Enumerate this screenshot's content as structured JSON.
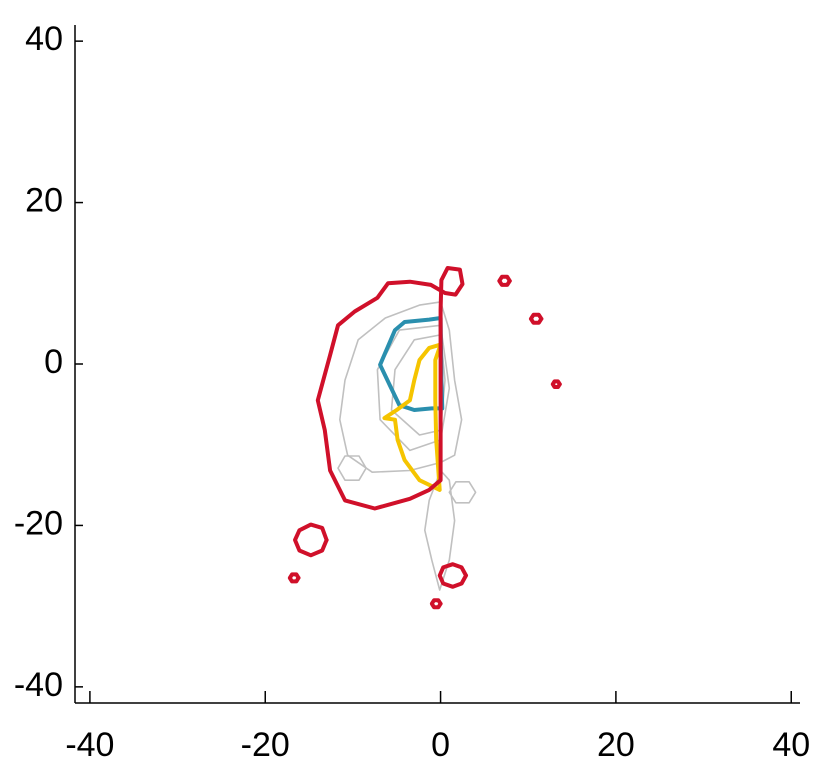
{
  "chart_data": {
    "type": "contour",
    "xlim": [
      -41.7,
      41
    ],
    "ylim": [
      -42,
      42
    ],
    "xticks": [
      -40,
      -20,
      0,
      20,
      40
    ],
    "yticks": [
      -40,
      -20,
      0,
      20,
      40
    ],
    "series": [
      {
        "color": "#c0c0c0",
        "x": [
          0,
          -2.4,
          -6.3,
          -9.4,
          -10.9,
          -11.5,
          -10.6,
          -7.8,
          -3.5,
          0,
          1.6,
          2.4,
          1.6,
          1.0,
          0
        ],
        "y": [
          7.7,
          7.3,
          5.7,
          3,
          -2,
          -6.9,
          -11.3,
          -13.4,
          -13.2,
          -12.2,
          -11.3,
          -6.9,
          -2,
          4.2,
          7.7
        ]
      },
      {
        "color": "#c0c0c0",
        "x": [
          0,
          -4.7,
          -7.2,
          -6.9,
          -3.5,
          0,
          1,
          0
        ],
        "y": [
          4.8,
          4.2,
          -0.7,
          -6.9,
          -10.7,
          -9.4,
          -3,
          4.8
        ]
      },
      {
        "color": "#c0c0c0",
        "x": [
          0,
          -3,
          -5.2,
          -5.6,
          -2.4,
          0,
          0.5,
          0
        ],
        "y": [
          3.6,
          3,
          -0.7,
          -5.7,
          -8.8,
          -8.2,
          -2,
          3.6
        ]
      },
      {
        "color": "#c0c0c0",
        "x": [
          0,
          -1.3,
          -1.8,
          -1,
          -0.1,
          1,
          1.6,
          1,
          0
        ],
        "y": [
          -13.2,
          -16.9,
          -20.6,
          -24.3,
          -28,
          -24.3,
          -19.4,
          -14.4,
          -13.2
        ]
      },
      {
        "color": "#c0c0c0",
        "x": [
          -8.5,
          -9.3,
          -10.9,
          -11.7,
          -10.9,
          -9.3,
          -8.5
        ],
        "y": [
          -12.9,
          -11.4,
          -11.4,
          -12.9,
          -14.4,
          -14.4,
          -12.9
        ]
      },
      {
        "color": "#c0c0c0",
        "x": [
          4,
          3.25,
          1.75,
          1,
          1.75,
          3.25,
          4
        ],
        "y": [
          -15.9,
          -14.6,
          -14.6,
          -15.9,
          -17.2,
          -17.2,
          -15.9
        ]
      },
      {
        "color": "#2a8fae",
        "x": [
          0,
          -1.3,
          -4.1,
          -5.2,
          -6.9,
          -5.8,
          -4.7,
          -3,
          -1,
          0.2,
          0.1,
          0
        ],
        "y": [
          5.7,
          5.5,
          5.2,
          4.2,
          -0.1,
          -2.6,
          -5.1,
          -5.7,
          -5.5,
          -5.5,
          -2.0,
          5.7
        ]
      },
      {
        "color": "#f5c400",
        "x": [
          0,
          -1.3,
          -2.4,
          -3,
          -3.5,
          -5,
          -6.4,
          -5.2,
          -4.9,
          -4.1,
          -2.4,
          -0.1,
          -0.5,
          -0.6,
          -0.6,
          0
        ],
        "y": [
          2.4,
          2,
          0.5,
          -2,
          -4.5,
          -5.7,
          -6.7,
          -6.9,
          -9.4,
          -11.9,
          -14.4,
          -15.6,
          -9.4,
          -4.5,
          0.5,
          2.4
        ]
      },
      {
        "color": "#d0102a",
        "x": [
          -1.1,
          -3.5,
          -6,
          -7.2,
          -9.8,
          -11.7,
          -12.6,
          -14,
          -13.2,
          -12.6,
          -10.9,
          -7.5,
          -3.5,
          -1.3,
          0,
          0,
          0,
          0.1,
          0.8,
          2.2,
          2.5,
          1.7,
          0.5,
          -1.1
        ],
        "y": [
          9.8,
          10.2,
          10,
          8.2,
          6.5,
          4.8,
          1.1,
          -4.5,
          -8.2,
          -13.2,
          -16.9,
          -17.9,
          -16.7,
          -15.6,
          -14.4,
          -4.5,
          6.7,
          10.4,
          11.9,
          11.7,
          9.9,
          8.6,
          8.8,
          9.8
        ]
      },
      {
        "color": "#d0102a",
        "x": [
          7.9,
          7.6,
          7.0,
          6.7,
          7.0,
          7.6,
          7.9
        ],
        "y": [
          10.3,
          10.8,
          10.8,
          10.3,
          9.8,
          9.8,
          10.3
        ]
      },
      {
        "color": "#d0102a",
        "x": [
          11.5,
          11.2,
          10.6,
          10.3,
          10.6,
          11.2,
          11.5
        ],
        "y": [
          5.6,
          6.1,
          6.1,
          5.6,
          5.1,
          5.1,
          5.6
        ]
      },
      {
        "color": "#d0102a",
        "x": [
          13.6,
          13.4,
          13.0,
          12.8,
          13.0,
          13.4,
          13.6
        ],
        "y": [
          -2.5,
          -2.15,
          -2.15,
          -2.5,
          -2.85,
          -2.85,
          -2.5
        ]
      },
      {
        "color": "#d0102a",
        "x": [
          -16.2,
          -16.45,
          -16.95,
          -17.2,
          -16.95,
          -16.45,
          -16.2
        ],
        "y": [
          -26.5,
          -26.07,
          -26.07,
          -26.5,
          -26.93,
          -26.93,
          -26.5
        ]
      },
      {
        "color": "#d0102a",
        "x": [
          0,
          -0.25,
          -0.75,
          -1,
          -0.75,
          -0.25,
          0
        ],
        "y": [
          -29.7,
          -29.27,
          -29.27,
          -29.7,
          -30.13,
          -30.13,
          -29.7
        ]
      },
      {
        "color": "#d0102a",
        "x": [
          -13.0,
          -13.5,
          -14.8,
          -16.1,
          -16.6,
          -16.1,
          -14.8,
          -13.5,
          -13.0
        ],
        "y": [
          -21.8,
          -20.3,
          -19.9,
          -20.6,
          -21.8,
          -23.1,
          -23.7,
          -23.1,
          -21.8
        ]
      },
      {
        "color": "#d0102a",
        "x": [
          2.9,
          2.4,
          1.4,
          0.3,
          -0.1,
          0.3,
          1.4,
          2.4,
          2.9
        ],
        "y": [
          -26.2,
          -25.2,
          -24.8,
          -25.2,
          -26.2,
          -27.2,
          -27.6,
          -27.2,
          -26.2
        ]
      }
    ]
  }
}
